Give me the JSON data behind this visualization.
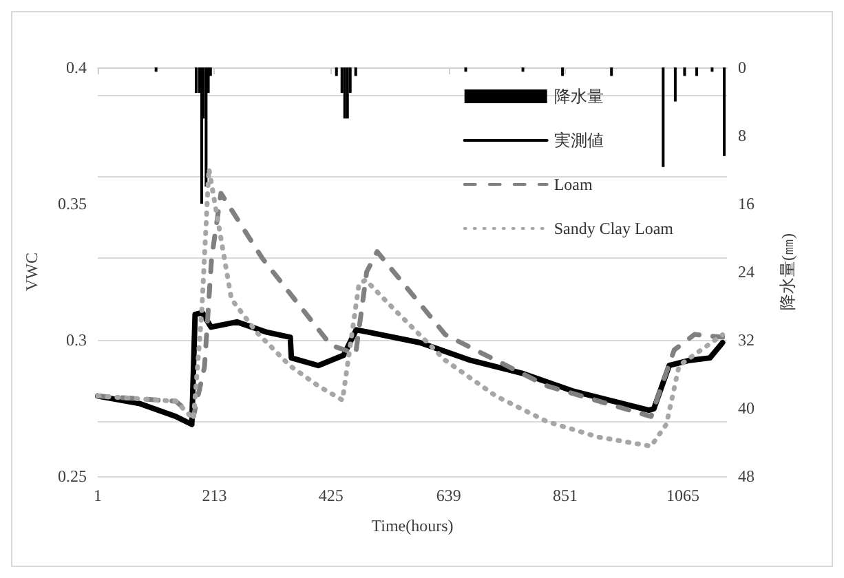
{
  "chart_data": {
    "type": "line",
    "xlabel": "Time(hours)",
    "ylabel": "VWC",
    "y2label": "降水量(㎜)",
    "xlim": [
      1,
      1145
    ],
    "xticks": [
      1,
      213,
      425,
      639,
      851,
      1065
    ],
    "ylim": [
      0.25,
      0.4
    ],
    "yticks": [
      0.25,
      0.3,
      0.35,
      0.4
    ],
    "y2lim": [
      48,
      0
    ],
    "y2ticks": [
      0,
      8,
      16,
      24,
      32,
      40,
      48
    ],
    "grid": "y",
    "legend": "top right",
    "marker": "none",
    "series": [
      {
        "name": "降水量",
        "type": "bar",
        "axis": "y2",
        "color": "#000000",
        "x": [
          107,
          180,
          186,
          190,
          193,
          198,
          202,
          206,
          435,
          445,
          450,
          455,
          460,
          470,
          670,
          774,
          846,
          935,
          1029,
          1051,
          1068,
          1090,
          1118,
          1140
        ],
        "values": [
          0.5,
          3,
          3,
          16,
          6,
          14,
          3,
          1,
          1,
          3,
          6,
          6,
          3,
          1,
          0.5,
          0.5,
          1,
          1,
          11.7,
          4,
          1,
          1,
          0.5,
          10.4
        ]
      },
      {
        "name": "実測値",
        "color": "#000000",
        "line_style": "solid",
        "x": [
          1,
          78,
          143,
          172,
          178,
          191,
          207,
          254,
          309,
          351,
          353,
          402,
          448,
          471,
          494,
          587,
          679,
          772,
          864,
          1003,
          1012,
          1040,
          1077,
          1114,
          1137
        ],
        "values": [
          0.2794,
          0.2766,
          0.2719,
          0.269,
          0.3094,
          0.31,
          0.3047,
          0.3066,
          0.3028,
          0.301,
          0.2934,
          0.2906,
          0.2944,
          0.3037,
          0.3028,
          0.299,
          0.2925,
          0.2878,
          0.2813,
          0.2742,
          0.2747,
          0.2906,
          0.2925,
          0.2934,
          0.299
        ]
      },
      {
        "name": "Loam",
        "color": "#808080",
        "line_style": "dashed",
        "x": [
          1,
          143,
          175,
          195,
          208,
          225,
          300,
          425,
          470,
          490,
          509,
          633,
          725,
          818,
          1007,
          1049,
          1086,
          1137
        ],
        "values": [
          0.2794,
          0.2775,
          0.2719,
          0.29,
          0.33,
          0.3538,
          0.33,
          0.298,
          0.295,
          0.325,
          0.3324,
          0.3019,
          0.2925,
          0.2831,
          0.2719,
          0.2963,
          0.302,
          0.301
        ]
      },
      {
        "name": "Sandy Clay Loam",
        "color": "#a6a6a6",
        "line_style": "dotted",
        "x": [
          1,
          143,
          175,
          190,
          203,
          244,
          290,
          350,
          402,
          446,
          476,
          488,
          540,
          633,
          725,
          818,
          910,
          1007,
          1035,
          1058,
          1137
        ],
        "values": [
          0.2794,
          0.2775,
          0.271,
          0.31,
          0.3629,
          0.315,
          0.3028,
          0.2906,
          0.2831,
          0.2779,
          0.3206,
          0.322,
          0.3112,
          0.2925,
          0.2794,
          0.27,
          0.2644,
          0.261,
          0.2691,
          0.2906,
          0.3019
        ]
      }
    ]
  }
}
